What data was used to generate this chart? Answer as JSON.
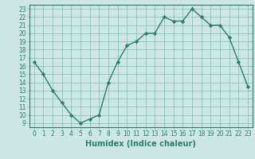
{
  "x": [
    0,
    1,
    2,
    3,
    4,
    5,
    6,
    7,
    8,
    9,
    10,
    11,
    12,
    13,
    14,
    15,
    16,
    17,
    18,
    19,
    20,
    21,
    22,
    23
  ],
  "y": [
    16.5,
    15.0,
    13.0,
    11.5,
    10.0,
    9.0,
    9.5,
    10.0,
    14.0,
    16.5,
    18.5,
    19.0,
    20.0,
    20.0,
    22.0,
    21.5,
    21.5,
    23.0,
    22.0,
    21.0,
    21.0,
    19.5,
    16.5,
    13.5
  ],
  "xlabel": "Humidex (Indice chaleur)",
  "xlim": [
    -0.5,
    23.5
  ],
  "ylim": [
    8.5,
    23.5
  ],
  "yticks": [
    9,
    10,
    11,
    12,
    13,
    14,
    15,
    16,
    17,
    18,
    19,
    20,
    21,
    22,
    23
  ],
  "xticks": [
    0,
    1,
    2,
    3,
    4,
    5,
    6,
    7,
    8,
    9,
    10,
    11,
    12,
    13,
    14,
    15,
    16,
    17,
    18,
    19,
    20,
    21,
    22,
    23
  ],
  "line_color": "#2d7d6e",
  "bg_color": "#cde8e4",
  "grid_color": "#7bbfb5",
  "text_color": "#2d7d6e",
  "marker": "D",
  "marker_size": 2.2,
  "line_width": 1.0,
  "tick_fontsize": 5.5,
  "xlabel_fontsize": 7.0
}
